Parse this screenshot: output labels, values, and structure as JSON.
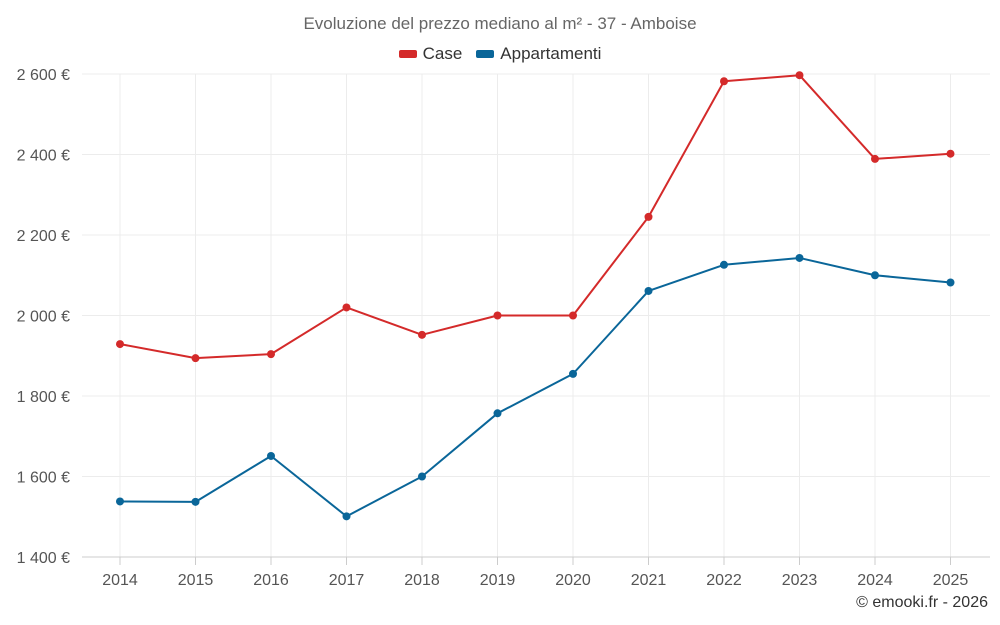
{
  "chart_data": {
    "type": "line",
    "title": "Evoluzione del prezzo mediano al m² - 37 - Amboise",
    "categories": [
      "2014",
      "2015",
      "2016",
      "2017",
      "2018",
      "2019",
      "2020",
      "2021",
      "2022",
      "2023",
      "2024",
      "2025"
    ],
    "series": [
      {
        "name": "Case",
        "color": "#d42a2a",
        "values": [
          1929,
          1894,
          1904,
          2020,
          1952,
          2000,
          2000,
          2245,
          2582,
          2597,
          2389,
          2402
        ]
      },
      {
        "name": "Appartamenti",
        "color": "#0a6699",
        "values": [
          1538,
          1537,
          1651,
          1501,
          1600,
          1757,
          1855,
          2061,
          2126,
          2143,
          2100,
          2082
        ]
      }
    ],
    "y_ticks": [
      "1 400 €",
      "1 600 €",
      "1 800 €",
      "2 000 €",
      "2 200 €",
      "2 400 €",
      "2 600 €"
    ],
    "ylim": [
      1400,
      2600
    ],
    "xlabel": "",
    "ylabel": "",
    "grid": true,
    "legend": "top-center"
  },
  "credit": "© emooki.fr - 2026"
}
